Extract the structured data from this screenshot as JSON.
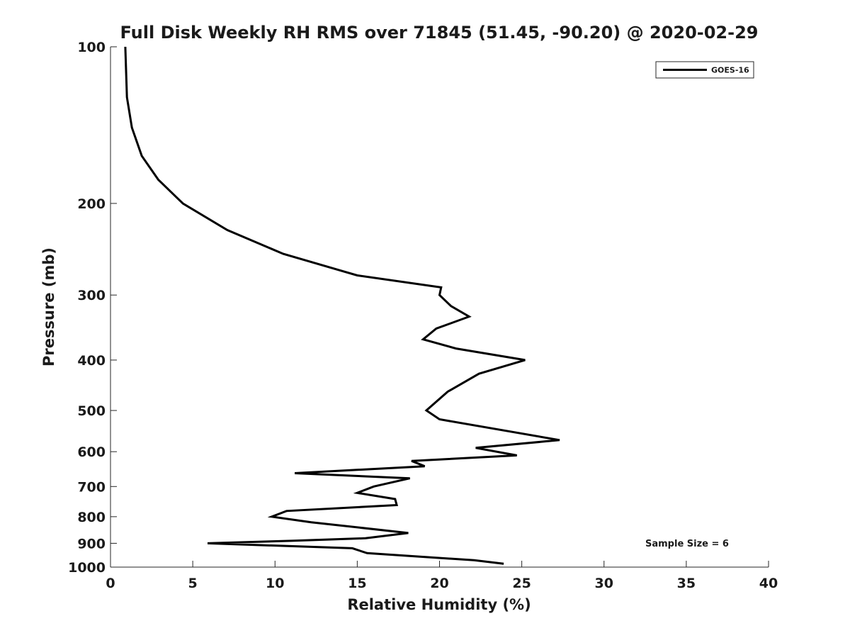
{
  "chart_data": {
    "type": "line",
    "title": "Full Disk Weekly RH RMS over 71845 (51.45, -90.20) @ 2020-02-29",
    "xlabel": "Relative Humidity (%)",
    "ylabel": "Pressure (mb)",
    "xlim": [
      0,
      40
    ],
    "ylim": [
      1000,
      100
    ],
    "y_scale": "log",
    "x_ticks": [
      0,
      5,
      10,
      15,
      20,
      25,
      30,
      35,
      40
    ],
    "y_ticks": [
      100,
      200,
      300,
      400,
      500,
      600,
      700,
      800,
      900,
      1000
    ],
    "grid": false,
    "legend_position": "top-right",
    "series": [
      {
        "name": "GOES-16",
        "color": "#000000",
        "x": [
          0.9,
          1.0,
          1.3,
          1.9,
          2.9,
          4.4,
          7.1,
          10.5,
          15.0,
          20.1,
          20.0,
          20.7,
          21.8,
          19.8,
          19.0,
          21.0,
          25.2,
          22.4,
          20.5,
          19.2,
          20.0,
          27.3,
          22.2,
          24.7,
          18.3,
          19.1,
          11.2,
          18.2,
          16.0,
          15.0,
          17.3,
          17.4,
          10.7,
          9.8,
          12.2,
          18.1,
          15.5,
          11.0,
          5.9,
          14.7,
          15.6,
          22.1,
          23.9
        ],
        "y": [
          100,
          125,
          143,
          162,
          180,
          200,
          225,
          250,
          275,
          290,
          300,
          315,
          330,
          348,
          365,
          380,
          400,
          425,
          460,
          500,
          520,
          570,
          590,
          610,
          625,
          640,
          660,
          675,
          700,
          720,
          740,
          760,
          780,
          800,
          820,
          860,
          880,
          890,
          900,
          920,
          940,
          970,
          985
        ]
      }
    ],
    "annotation": "Sample Size = 6"
  }
}
